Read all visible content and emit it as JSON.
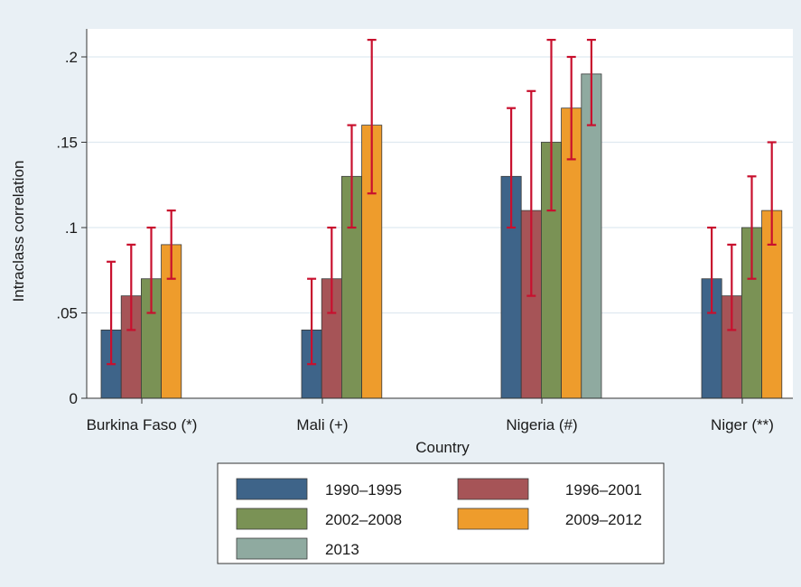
{
  "chart_data": {
    "type": "bar",
    "xlabel": "Country",
    "ylabel": "Intraclass correlation",
    "ylim": [
      0,
      0.22
    ],
    "yticks": [
      0,
      0.05,
      0.1,
      0.15,
      0.2
    ],
    "ytick_labels": [
      "0",
      ".05",
      ".1",
      ".15",
      ".2"
    ],
    "grid": true,
    "legend_position": "bottom",
    "categories": [
      "Burkina Faso (*)",
      "Mali (+)",
      "Nigeria (#)",
      "Niger (**)"
    ],
    "series": [
      {
        "name": "1990–1995",
        "color": "#3e6489",
        "values": [
          0.04,
          0.04,
          0.13,
          0.07
        ],
        "ci_low": [
          0.02,
          0.02,
          0.1,
          0.05
        ],
        "ci_high": [
          0.08,
          0.07,
          0.17,
          0.1
        ]
      },
      {
        "name": "1996–2001",
        "color": "#a65457",
        "values": [
          0.06,
          0.07,
          0.11,
          0.06
        ],
        "ci_low": [
          0.04,
          0.05,
          0.06,
          0.04
        ],
        "ci_high": [
          0.09,
          0.1,
          0.18,
          0.09
        ]
      },
      {
        "name": "2002–2008",
        "color": "#7a9255",
        "values": [
          0.07,
          0.13,
          0.15,
          0.1
        ],
        "ci_low": [
          0.05,
          0.1,
          0.11,
          0.07
        ],
        "ci_high": [
          0.1,
          0.16,
          0.21,
          0.13
        ]
      },
      {
        "name": "2009–2012",
        "color": "#ee9c2c",
        "values": [
          0.09,
          0.16,
          0.17,
          0.11
        ],
        "ci_low": [
          0.07,
          0.12,
          0.14,
          0.09
        ],
        "ci_high": [
          0.11,
          0.21,
          0.2,
          0.15
        ]
      },
      {
        "name": "2013",
        "color": "#8faaa0",
        "values": [
          null,
          null,
          0.19,
          null
        ],
        "ci_low": [
          null,
          null,
          0.16,
          null
        ],
        "ci_high": [
          null,
          null,
          0.21,
          null
        ]
      }
    ],
    "colors": {
      "background": "#e9f0f5",
      "plot_background": "#ffffff",
      "gridline": "#dfe9f0",
      "error_bar": "#c8102e"
    }
  }
}
